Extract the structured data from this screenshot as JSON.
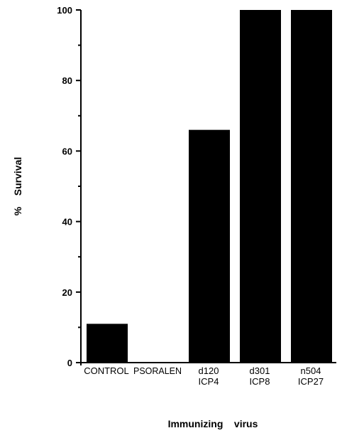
{
  "chart_data": {
    "type": "bar",
    "categories": [
      [
        "CONTROL"
      ],
      [
        "PSORALEN"
      ],
      [
        "d120",
        "ICP4"
      ],
      [
        "d301",
        "ICP8"
      ],
      [
        "n504",
        "ICP27"
      ]
    ],
    "values": [
      11,
      0,
      66,
      100,
      100
    ],
    "xlabel": "Immunizing    virus",
    "ylabel": "%    Survival",
    "ylim": [
      0,
      100
    ],
    "yticks": [
      0,
      20,
      40,
      60,
      80,
      100
    ],
    "grid": false,
    "bar_color": "#000000"
  }
}
